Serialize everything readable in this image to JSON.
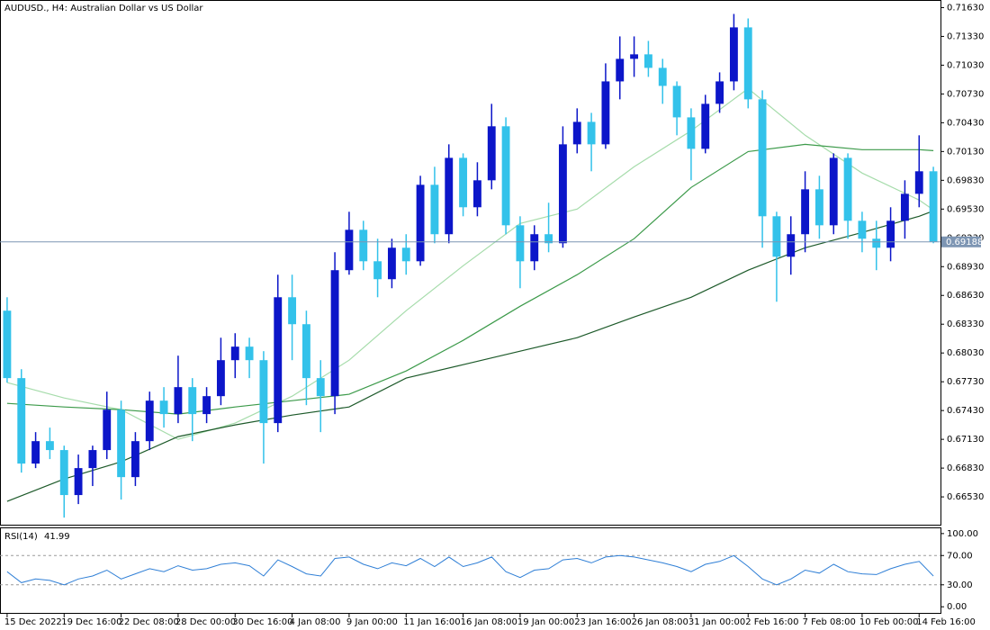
{
  "chart_data": [
    {
      "type": "candlestick",
      "title": "AUDUSD., H4:  Australian Dollar vs US Dollar",
      "categories": [
        "15 Dec 2022",
        null,
        null,
        null,
        "19 Dec 16:00",
        null,
        null,
        null,
        "22 Dec 08:00",
        null,
        null,
        null,
        "28 Dec 00:00",
        null,
        null,
        null,
        "30 Dec 16:00",
        null,
        null,
        null,
        "4 Jan 08:00",
        null,
        null,
        null,
        "9 Jan 00:00",
        null,
        null,
        null,
        "11 Jan 16:00",
        null,
        null,
        null,
        "16 Jan 08:00",
        null,
        null,
        null,
        "19 Jan 00:00",
        null,
        null,
        null,
        "23 Jan 16:00",
        null,
        null,
        null,
        "26 Jan 08:00",
        null,
        null,
        null,
        "31 Jan 00:00",
        null,
        null,
        null,
        "2 Feb 16:00",
        null,
        null,
        null,
        "7 Feb 08:00",
        null,
        null,
        null,
        "10 Feb 00:00",
        null,
        null,
        null,
        "14 Feb 16:00",
        null
      ],
      "open": [
        0.68471,
        0.67768,
        0.66877,
        0.67111,
        0.67018,
        0.66549,
        0.6683,
        0.67018,
        0.67439,
        0.66736,
        0.67111,
        0.67533,
        0.67393,
        0.67674,
        0.67393,
        0.6758,
        0.67955,
        0.68096,
        0.67955,
        0.67299,
        0.68611,
        0.6833,
        0.67768,
        0.6758,
        0.68893,
        0.69314,
        0.68986,
        0.68799,
        0.69127,
        0.68986,
        0.69783,
        0.69268,
        0.70064,
        0.69549,
        0.6983,
        0.70393,
        0.69361,
        0.68986,
        0.69268,
        0.69174,
        0.70205,
        0.70439,
        0.70205,
        0.70861,
        0.71096,
        0.71143,
        0.71002,
        0.70814,
        0.70486,
        0.70158,
        0.70627,
        0.70861,
        0.71424,
        0.70674,
        0.69455,
        0.69033,
        0.69268,
        0.69736,
        0.69361,
        0.70064,
        0.69408,
        0.69221,
        0.69127,
        0.69408,
        0.69689,
        0.69924
      ],
      "high": [
        0.68611,
        0.67861,
        0.67205,
        0.67252,
        0.67064,
        0.66971,
        0.67064,
        0.67627,
        0.67533,
        0.67205,
        0.67627,
        0.67674,
        0.68002,
        0.67768,
        0.67674,
        0.68189,
        0.68236,
        0.68189,
        0.68049,
        0.68846,
        0.68846,
        0.68471,
        0.67955,
        0.6908,
        0.69502,
        0.69408,
        0.69221,
        0.69221,
        0.69268,
        0.69877,
        0.69971,
        0.70205,
        0.70111,
        0.70018,
        0.70627,
        0.70486,
        0.69455,
        0.69361,
        0.69596,
        0.70393,
        0.7058,
        0.70533,
        0.71049,
        0.7133,
        0.7133,
        0.71283,
        0.71096,
        0.70861,
        0.7058,
        0.70721,
        0.70955,
        0.71564,
        0.71517,
        0.70768,
        0.69502,
        0.69455,
        0.69924,
        0.69877,
        0.70111,
        0.70111,
        0.69502,
        0.69408,
        0.69549,
        0.6983,
        0.70299,
        0.69971
      ],
      "low": [
        0.67721,
        0.66783,
        0.6683,
        0.66924,
        0.66314,
        0.66455,
        0.66643,
        0.66924,
        0.66502,
        0.66643,
        0.67018,
        0.67252,
        0.67299,
        0.67111,
        0.67299,
        0.67486,
        0.67768,
        0.67768,
        0.66877,
        0.67205,
        0.67955,
        0.67486,
        0.67205,
        0.67393,
        0.68846,
        0.68893,
        0.68611,
        0.68705,
        0.68846,
        0.68939,
        0.69174,
        0.69174,
        0.69455,
        0.69455,
        0.69736,
        0.69268,
        0.68705,
        0.68893,
        0.6908,
        0.69127,
        0.70111,
        0.69924,
        0.70158,
        0.70674,
        0.70908,
        0.70908,
        0.70627,
        0.70299,
        0.6983,
        0.70111,
        0.70533,
        0.70768,
        0.7058,
        0.69127,
        0.68564,
        0.68846,
        0.6908,
        0.69221,
        0.69268,
        0.69221,
        0.6908,
        0.68893,
        0.68986,
        0.69221,
        0.69549,
        0.69174
      ],
      "close": [
        0.67768,
        0.66877,
        0.67111,
        0.67018,
        0.66549,
        0.6683,
        0.67018,
        0.67439,
        0.66736,
        0.67111,
        0.67533,
        0.67393,
        0.67674,
        0.67393,
        0.6758,
        0.67955,
        0.68096,
        0.67955,
        0.67299,
        0.68611,
        0.6833,
        0.67768,
        0.6758,
        0.68893,
        0.69314,
        0.68986,
        0.68799,
        0.69127,
        0.68986,
        0.69783,
        0.69268,
        0.70064,
        0.69549,
        0.6983,
        0.70393,
        0.69361,
        0.68986,
        0.69268,
        0.69174,
        0.70205,
        0.70439,
        0.70205,
        0.70861,
        0.71096,
        0.71143,
        0.71002,
        0.70814,
        0.70486,
        0.70158,
        0.70627,
        0.70861,
        0.71424,
        0.70674,
        0.69455,
        0.69033,
        0.69268,
        0.69736,
        0.69361,
        0.70064,
        0.69408,
        0.69221,
        0.69127,
        0.69408,
        0.69689,
        0.69924,
        0.69188
      ],
      "up_color": "#0c16c9",
      "down_color": "#33c2ea",
      "lines": [
        {
          "color": "#a6dcab",
          "x": [
            0,
            4,
            8,
            12,
            16,
            20,
            24,
            28,
            32,
            36,
            40,
            44,
            48,
            52,
            56,
            60,
            64,
            65
          ],
          "values": [
            0.67721,
            0.67561,
            0.67439,
            0.6713,
            0.67299,
            0.6758,
            0.67955,
            0.68471,
            0.68939,
            0.6938,
            0.6953,
            0.69971,
            0.70346,
            0.70786,
            0.70299,
            0.69905,
            0.69624,
            0.69521
          ]
        },
        {
          "color": "#3c9a4a",
          "x": [
            0,
            4,
            8,
            12,
            16,
            20,
            24,
            28,
            32,
            36,
            40,
            44,
            48,
            52,
            56,
            60,
            64,
            65
          ],
          "values": [
            0.67505,
            0.67467,
            0.67439,
            0.67393,
            0.67467,
            0.67533,
            0.67599,
            0.67842,
            0.68161,
            0.68517,
            0.68846,
            0.69221,
            0.69755,
            0.7013,
            0.70205,
            0.70149,
            0.70149,
            0.70139
          ]
        },
        {
          "color": "#1d5a2a",
          "x": [
            0,
            4,
            8,
            12,
            16,
            20,
            24,
            28,
            32,
            36,
            40,
            44,
            48,
            52,
            56,
            60,
            64,
            65
          ],
          "values": [
            0.66483,
            0.66717,
            0.66896,
            0.67158,
            0.6728,
            0.67383,
            0.67467,
            0.67768,
            0.67908,
            0.68049,
            0.68189,
            0.68405,
            0.68611,
            0.68893,
            0.69127,
            0.69286,
            0.69455,
            0.69511
          ]
        }
      ],
      "current_price": 0.69188,
      "current_price_color": "#7d95b3",
      "ylim": [
        0.6624,
        0.717
      ],
      "yticks": [
        {
          "value": 0.7163,
          "label": "0.71630"
        },
        {
          "value": 0.7133,
          "label": "0.71330"
        },
        {
          "value": 0.7103,
          "label": "0.71030"
        },
        {
          "value": 0.7073,
          "label": "0.70730"
        },
        {
          "value": 0.7043,
          "label": "0.70430"
        },
        {
          "value": 0.7013,
          "label": "0.70130"
        },
        {
          "value": 0.6983,
          "label": "0.69830"
        },
        {
          "value": 0.6953,
          "label": "0.69530"
        },
        {
          "value": 0.6923,
          "label": "0.69230"
        },
        {
          "value": 0.6893,
          "label": "0.68930"
        },
        {
          "value": 0.6863,
          "label": "0.68630"
        },
        {
          "value": 0.6833,
          "label": "0.68330"
        },
        {
          "value": 0.6803,
          "label": "0.68030"
        },
        {
          "value": 0.6773,
          "label": "0.67730"
        },
        {
          "value": 0.6743,
          "label": "0.67430"
        },
        {
          "value": 0.6713,
          "label": "0.67130"
        },
        {
          "value": 0.6683,
          "label": "0.66830"
        },
        {
          "value": 0.6653,
          "label": "0.66530"
        }
      ]
    },
    {
      "type": "line",
      "title": "RSI(14)",
      "series": [
        {
          "color": "#2f7fd6",
          "values": [
            48,
            33,
            38,
            36,
            30,
            38,
            42,
            50,
            38,
            45,
            52,
            48,
            56,
            50,
            52,
            58,
            60,
            56,
            42,
            64,
            55,
            45,
            42,
            66,
            68,
            58,
            52,
            60,
            56,
            66,
            55,
            68,
            55,
            60,
            68,
            48,
            40,
            50,
            52,
            64,
            66,
            60,
            68,
            70,
            68,
            64,
            60,
            55,
            48,
            58,
            62,
            70,
            55,
            38,
            30,
            38,
            50,
            46,
            58,
            48,
            45,
            44,
            52,
            58,
            62,
            41.99
          ]
        }
      ],
      "levels": [
        70,
        30
      ],
      "ylim": [
        -9.6,
        107.2
      ],
      "yticks": [
        {
          "value": 100,
          "label": "100.00"
        },
        {
          "value": 70,
          "label": "70.00"
        },
        {
          "value": 30,
          "label": "30.00"
        },
        {
          "value": 0,
          "label": "0.00"
        }
      ]
    }
  ]
}
